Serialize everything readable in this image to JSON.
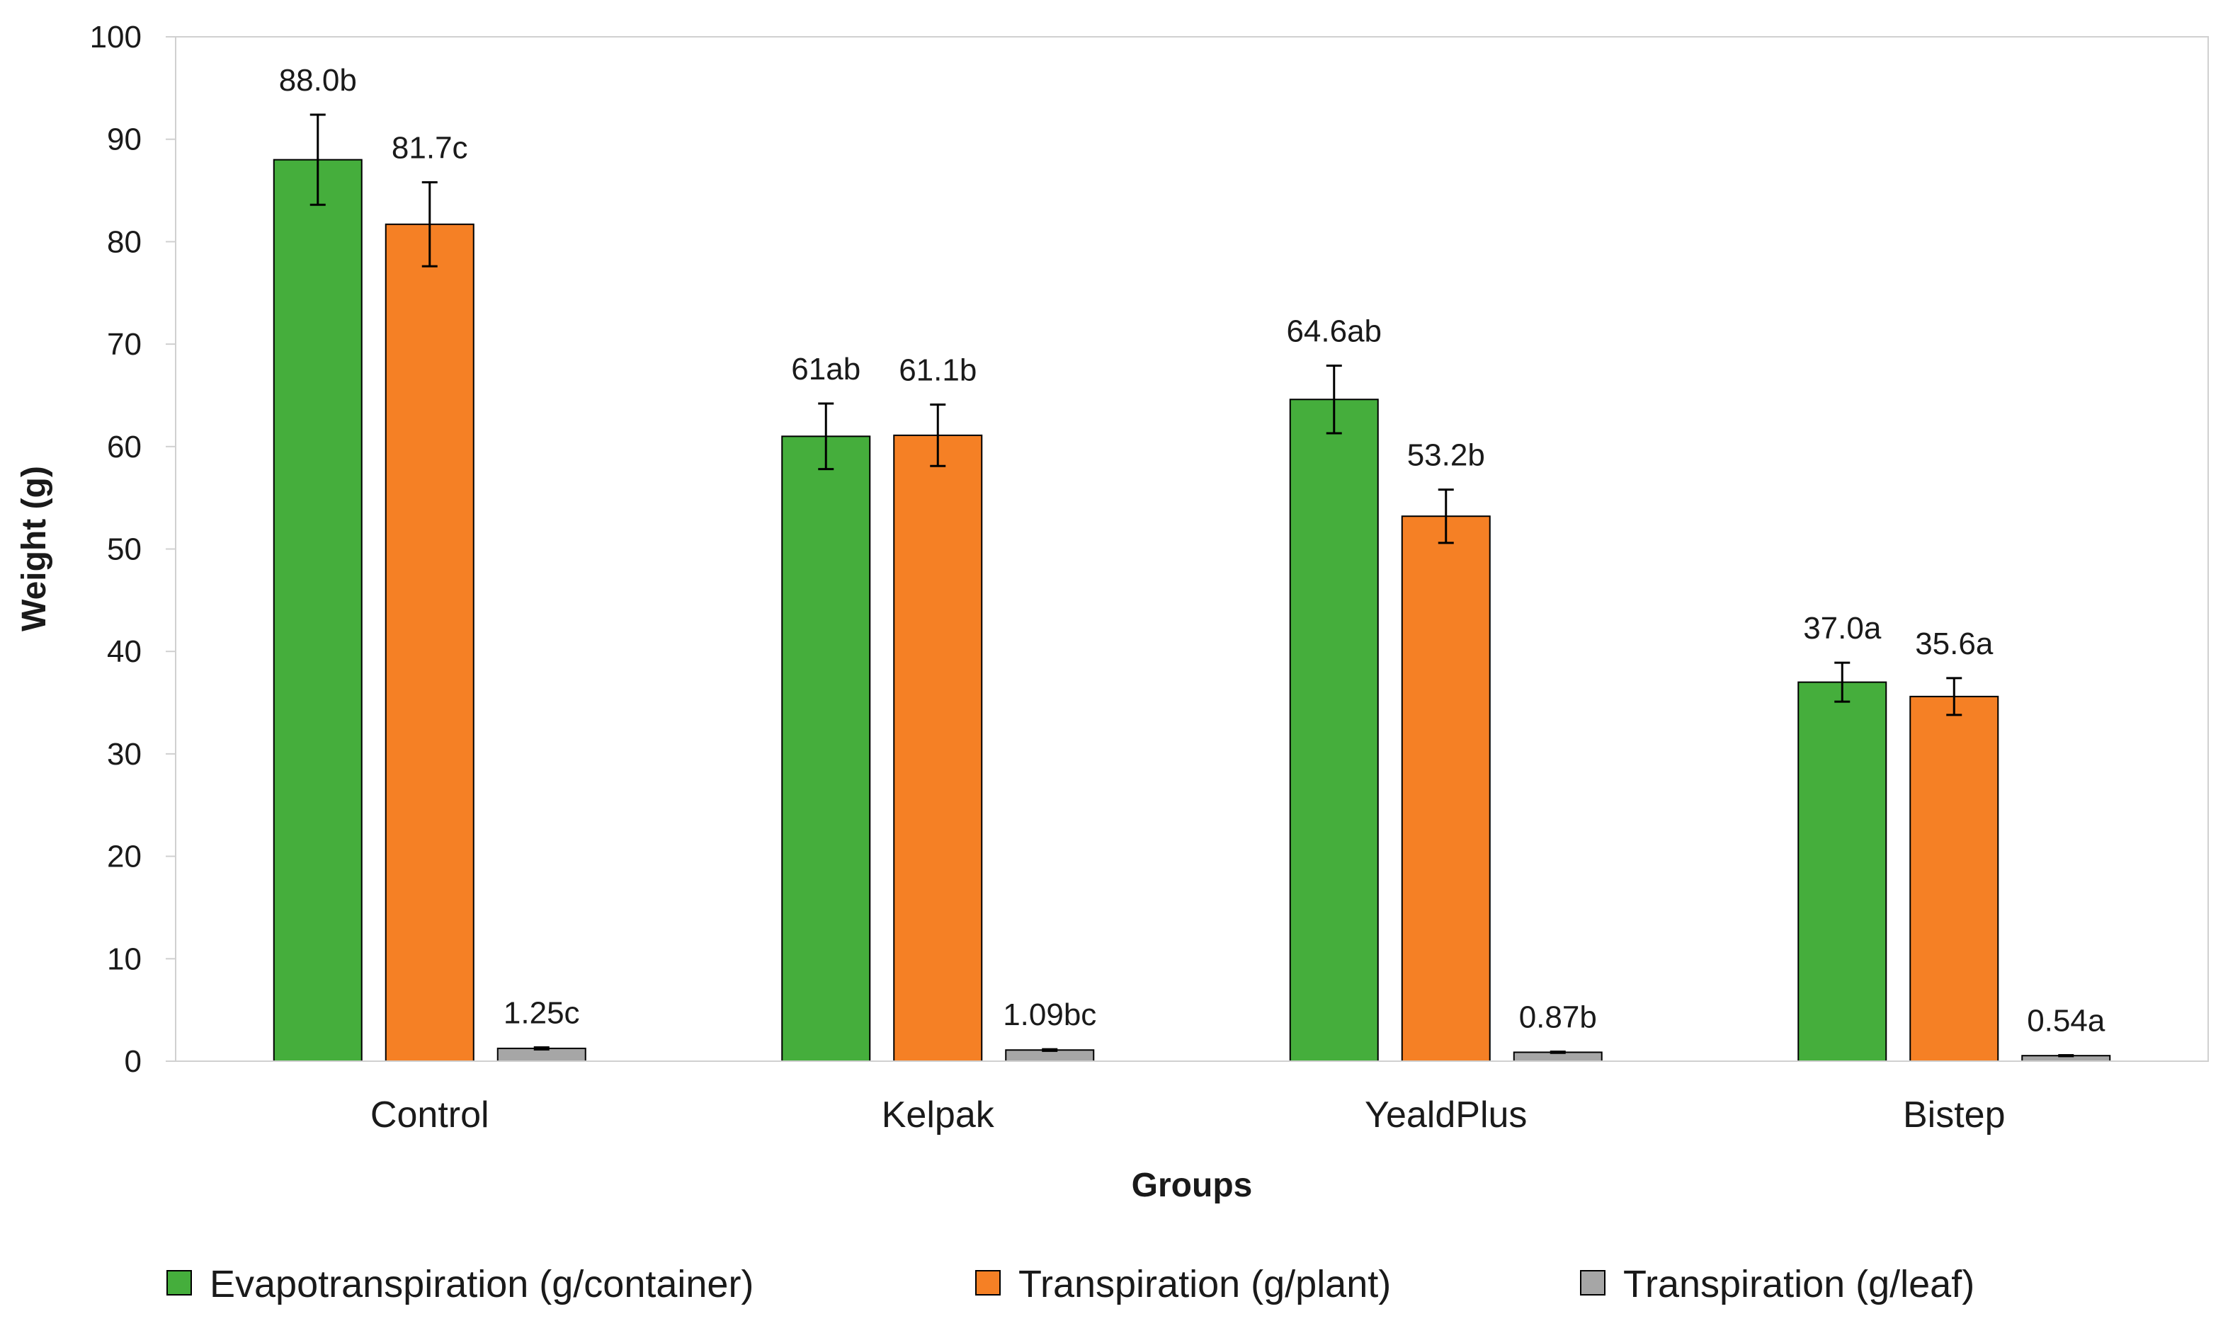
{
  "chart_data": {
    "type": "bar",
    "title": "",
    "xlabel": "Groups",
    "ylabel": "Weight (g)",
    "ylim": [
      0,
      100
    ],
    "yticks": [
      0,
      10,
      20,
      30,
      40,
      50,
      60,
      70,
      80,
      90,
      100
    ],
    "ytick_labels": [
      "0",
      "10",
      "20",
      "30",
      "40",
      "50",
      "60",
      "70",
      "80",
      "90",
      "100"
    ],
    "categories": [
      "Control",
      "Kelpak",
      "YealdPlus",
      "Bistep"
    ],
    "grid": false,
    "legend_position": "bottom",
    "series": [
      {
        "name": "Evapotranspiration (g/container)",
        "color": "#45AE3C",
        "values": [
          88.0,
          61.0,
          64.6,
          37.0
        ],
        "errors": [
          4.4,
          3.2,
          3.3,
          1.9
        ],
        "labels": [
          "88.0b",
          "61ab",
          "64.6ab",
          "37.0a"
        ]
      },
      {
        "name": "Transpiration (g/plant)",
        "color": "#F58025",
        "values": [
          81.7,
          61.1,
          53.2,
          35.6
        ],
        "errors": [
          4.1,
          3.0,
          2.6,
          1.8
        ],
        "labels": [
          "81.7c",
          "61.1b",
          "53.2b",
          "35.6a"
        ]
      },
      {
        "name": "Transpiration (g/leaf)",
        "color": "#A6A6A6",
        "values": [
          1.25,
          1.09,
          0.87,
          0.54
        ],
        "errors": [
          0.1,
          0.08,
          0.06,
          0.05
        ],
        "labels": [
          "1.25c",
          "1.09bc",
          "0.87b",
          "0.54a"
        ]
      }
    ]
  }
}
